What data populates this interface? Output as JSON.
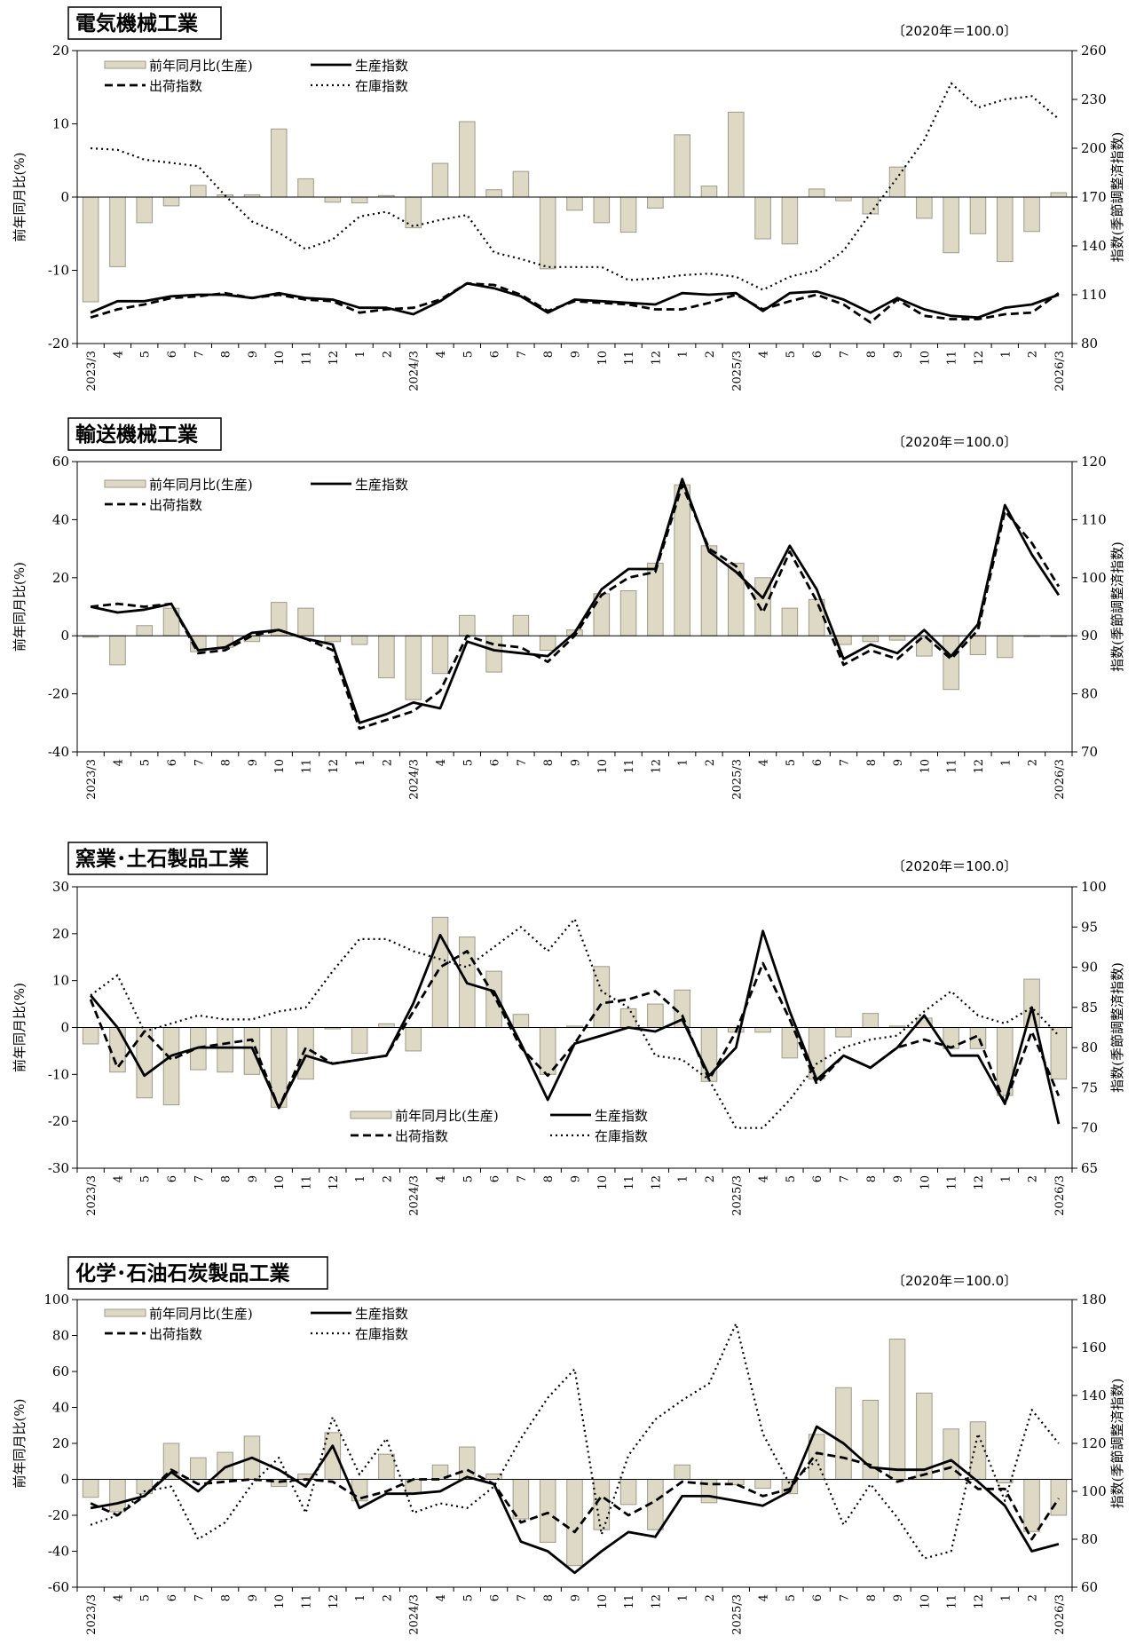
{
  "unit_note": "〔2020年＝100.0〕",
  "labels": {
    "bar": "前年同月比(生産)",
    "production": "生産指数",
    "shipment": "出荷指数",
    "inventory": "在庫指数",
    "left_axis": "前年同月比(%)",
    "right_axis": "指数(季節調整済指数)"
  },
  "x_labels": [
    "2023/3",
    "4",
    "5",
    "6",
    "7",
    "8",
    "9",
    "10",
    "11",
    "12",
    "1",
    "2",
    "2024/3",
    "4",
    "5",
    "6",
    "7",
    "8",
    "9",
    "10",
    "11",
    "12",
    "1",
    "2",
    "2025/3",
    "4",
    "5",
    "6",
    "7",
    "8",
    "9",
    "10",
    "11",
    "12",
    "1",
    "2",
    "2026/3"
  ],
  "colors": {
    "bar_fill": "#ddd9c4",
    "bar_stroke": "#9e9a88",
    "line": "#000000"
  },
  "chart_data": [
    {
      "type": "bar",
      "title": "電気機械工業",
      "ylim": [
        -20,
        20
      ],
      "yticks": [
        -20,
        -10,
        0,
        10,
        20
      ],
      "y2lim": [
        80,
        260
      ],
      "y2ticks": [
        80,
        110,
        140,
        170,
        200,
        230,
        260
      ],
      "legend": "top-left",
      "categories": [
        "2023/3",
        "4",
        "5",
        "6",
        "7",
        "8",
        "9",
        "10",
        "11",
        "12",
        "1",
        "2",
        "2024/3",
        "4",
        "5",
        "6",
        "7",
        "8",
        "9",
        "10",
        "11",
        "12",
        "1",
        "2",
        "2025/3",
        "4",
        "5",
        "6",
        "7",
        "8",
        "9",
        "10",
        "11",
        "12",
        "1",
        "2",
        "2026/3"
      ],
      "series": [
        {
          "name": "前年同月比(生産)",
          "kind": "bar",
          "axis": "left",
          "values": [
            -14.3,
            -9.5,
            -3.5,
            -1.2,
            1.6,
            0.3,
            0.3,
            9.3,
            2.5,
            -0.7,
            -0.8,
            0.2,
            -4.2,
            4.6,
            10.3,
            1.0,
            3.5,
            -9.8,
            -1.8,
            -3.5,
            -4.8,
            -1.5,
            8.5,
            1.5,
            11.6,
            -5.7,
            -6.4,
            1.1,
            -0.5,
            -2.3,
            4.1,
            -2.9,
            -7.6,
            -5.0,
            -8.8,
            -4.7,
            0.6
          ]
        },
        {
          "name": "生産指数",
          "kind": "line",
          "style": "solid",
          "axis": "right",
          "values": [
            99,
            106,
            106,
            109,
            110,
            110,
            108,
            111,
            108,
            107,
            102,
            102,
            98,
            106,
            117,
            114,
            109,
            99,
            107,
            106,
            105,
            104,
            111,
            110,
            111,
            100,
            111,
            112,
            107,
            99,
            108,
            101,
            97,
            96,
            102,
            104,
            110
          ]
        },
        {
          "name": "出荷指数",
          "kind": "line",
          "style": "dashed",
          "axis": "right",
          "values": [
            96,
            101,
            104,
            108,
            109,
            111,
            108,
            110,
            107,
            106,
            99,
            101,
            102,
            107,
            117,
            116,
            110,
            100,
            106,
            105,
            104,
            101,
            101,
            105,
            110,
            101,
            106,
            110,
            104,
            93,
            107,
            97,
            95,
            95,
            98,
            99,
            111
          ]
        },
        {
          "name": "在庫指数",
          "kind": "line",
          "style": "dotted",
          "axis": "right",
          "values": [
            200,
            199,
            193,
            191,
            189,
            171,
            155,
            148,
            138,
            144,
            158,
            161,
            152,
            156,
            159,
            136,
            132,
            127,
            127,
            127,
            119,
            120,
            122,
            123,
            121,
            113,
            121,
            125,
            137,
            160,
            182,
            205,
            240,
            225,
            230,
            232,
            218
          ]
        }
      ]
    },
    {
      "type": "bar",
      "title": "輸送機械工業",
      "ylim": [
        -40,
        60
      ],
      "yticks": [
        -40,
        -20,
        0,
        20,
        40,
        60
      ],
      "y2lim": [
        70,
        120
      ],
      "y2ticks": [
        70,
        80,
        90,
        100,
        110,
        120
      ],
      "legend": "top-left",
      "categories": [
        "2023/3",
        "4",
        "5",
        "6",
        "7",
        "8",
        "9",
        "10",
        "11",
        "12",
        "1",
        "2",
        "2024/3",
        "4",
        "5",
        "6",
        "7",
        "8",
        "9",
        "10",
        "11",
        "12",
        "1",
        "2",
        "2025/3",
        "4",
        "5",
        "6",
        "7",
        "8",
        "9",
        "10",
        "11",
        "12",
        "1",
        "2",
        "2026/3"
      ],
      "series": [
        {
          "name": "前年同月比(生産)",
          "kind": "bar",
          "axis": "left",
          "values": [
            -0.5,
            -10,
            3.5,
            9.5,
            -5.5,
            -4,
            -2,
            11.5,
            9.5,
            -2,
            -3,
            -14.5,
            -22,
            -13,
            7,
            -12.5,
            7,
            -5,
            2,
            14.5,
            15.5,
            25,
            52,
            31,
            25,
            20,
            9.5,
            12.5,
            -3,
            -2,
            -1.5,
            -7,
            -18.5,
            -6.5,
            -7.5,
            -0.3,
            -0.3
          ]
        },
        {
          "name": "生産指数",
          "kind": "line",
          "style": "solid",
          "axis": "right",
          "values": [
            95,
            94,
            94.5,
            95.5,
            87.5,
            88,
            90.5,
            91,
            89.5,
            88.5,
            75,
            76.5,
            78.5,
            77.5,
            89,
            87.5,
            87,
            86.5,
            90.5,
            98,
            101.5,
            101.5,
            117,
            104.5,
            101,
            96.5,
            105.5,
            98,
            86,
            88.5,
            87,
            91,
            86.5,
            92,
            112.5,
            104,
            97
          ]
        },
        {
          "name": "出荷指数",
          "kind": "line",
          "style": "dashed",
          "axis": "right",
          "values": [
            95,
            95.5,
            95,
            95.5,
            87,
            87.5,
            90,
            91,
            89.5,
            87.5,
            74,
            75.5,
            77,
            80.5,
            90,
            88.5,
            88,
            85.5,
            90,
            97,
            100,
            101,
            116,
            105,
            102,
            94,
            104.5,
            96,
            85,
            87.5,
            86,
            90,
            86,
            91,
            111.5,
            106,
            98.5
          ]
        }
      ]
    },
    {
      "type": "bar",
      "title": "窯業･土石製品工業",
      "ylim": [
        -30,
        30
      ],
      "yticks": [
        -30,
        -20,
        -10,
        0,
        10,
        20,
        30
      ],
      "y2lim": [
        65,
        100
      ],
      "y2ticks": [
        65,
        70,
        75,
        80,
        85,
        90,
        95,
        100
      ],
      "legend": "bottom-center",
      "categories": [
        "2023/3",
        "4",
        "5",
        "6",
        "7",
        "8",
        "9",
        "10",
        "11",
        "12",
        "1",
        "2",
        "2024/3",
        "4",
        "5",
        "6",
        "7",
        "8",
        "9",
        "10",
        "11",
        "12",
        "1",
        "2",
        "2025/3",
        "4",
        "5",
        "6",
        "7",
        "8",
        "9",
        "10",
        "11",
        "12",
        "1",
        "2",
        "2026/3"
      ],
      "series": [
        {
          "name": "前年同月比(生産)",
          "kind": "bar",
          "axis": "left",
          "values": [
            -3.5,
            -9.5,
            -15,
            -16.5,
            -9,
            -9.5,
            -10,
            -17,
            -11,
            -0.3,
            -5.5,
            0.8,
            -5,
            23.5,
            19.3,
            12,
            2.8,
            -10,
            0.3,
            13,
            4,
            5,
            8,
            -11.5,
            -1,
            -1,
            -6.5,
            -11,
            -2,
            3,
            0.3,
            2,
            -4.5,
            -4.5,
            -14.5,
            10.3,
            -11
          ]
        },
        {
          "name": "生産指数",
          "kind": "line",
          "style": "solid",
          "axis": "right",
          "values": [
            86.5,
            82.5,
            76.5,
            79,
            80,
            80,
            80,
            72.5,
            79,
            78,
            78.5,
            79,
            85.5,
            94,
            88,
            87,
            80.5,
            73.5,
            80.5,
            81.5,
            82.5,
            82,
            83.5,
            76.5,
            80,
            94.5,
            84.5,
            76,
            79,
            77.5,
            80,
            84,
            79,
            79,
            73,
            85,
            70.5
          ]
        },
        {
          "name": "出荷指数",
          "kind": "line",
          "style": "dashed",
          "axis": "right",
          "values": [
            86,
            77.5,
            82,
            78.5,
            80,
            80.5,
            81,
            72.5,
            80,
            78,
            78.5,
            79,
            84.5,
            90,
            92,
            86.5,
            80,
            76.5,
            80.5,
            85.5,
            86,
            87,
            84,
            76,
            82,
            90.5,
            83.5,
            75.5,
            79,
            77.5,
            80,
            81,
            80,
            81.5,
            73,
            82,
            74
          ]
        },
        {
          "name": "在庫指数",
          "kind": "line",
          "style": "dotted",
          "axis": "right",
          "values": [
            86.5,
            89,
            82,
            83,
            84,
            83.5,
            83.5,
            84.5,
            85,
            89.5,
            93.5,
            93.5,
            92,
            91,
            90,
            92.5,
            95,
            92,
            96,
            87,
            85,
            79,
            78.5,
            76,
            70,
            70,
            73.5,
            78,
            80,
            81,
            81.5,
            84.5,
            87,
            84,
            83,
            85,
            81.5
          ]
        }
      ]
    },
    {
      "type": "bar",
      "title": "化学･石油石炭製品工業",
      "ylim": [
        -60,
        100
      ],
      "yticks": [
        -60,
        -40,
        -20,
        0,
        20,
        40,
        60,
        80,
        100
      ],
      "y2lim": [
        60,
        180
      ],
      "y2ticks": [
        60,
        80,
        100,
        120,
        140,
        160,
        180
      ],
      "legend": "top-left",
      "categories": [
        "2023/3",
        "4",
        "5",
        "6",
        "7",
        "8",
        "9",
        "10",
        "11",
        "12",
        "1",
        "2",
        "2024/3",
        "4",
        "5",
        "6",
        "7",
        "8",
        "9",
        "10",
        "11",
        "12",
        "1",
        "2",
        "2025/3",
        "4",
        "5",
        "6",
        "7",
        "8",
        "9",
        "10",
        "11",
        "12",
        "1",
        "2",
        "2026/3"
      ],
      "series": [
        {
          "name": "前年同月比(生産)",
          "kind": "bar",
          "axis": "left",
          "values": [
            -10,
            -18,
            -8,
            20,
            12,
            15,
            24,
            -4,
            3,
            26,
            -12,
            14,
            -8,
            8,
            18,
            3,
            -22,
            -35,
            -48,
            -28,
            -14,
            -28,
            8,
            -13,
            -3,
            -5,
            -8,
            25,
            51,
            44,
            78,
            48,
            28,
            32,
            -2,
            -29,
            -20
          ]
        },
        {
          "name": "生産指数",
          "kind": "line",
          "style": "solid",
          "axis": "right",
          "values": [
            93,
            95,
            98,
            108,
            100,
            110,
            114,
            109,
            102,
            119,
            93,
            99,
            99,
            100,
            106,
            103,
            79,
            75,
            66,
            75,
            83,
            81,
            98,
            98,
            96,
            94,
            100,
            127,
            120,
            110,
            109,
            109,
            113,
            104,
            94,
            75,
            78
          ]
        },
        {
          "name": "出荷指数",
          "kind": "line",
          "style": "dashed",
          "axis": "right",
          "values": [
            95,
            90,
            98,
            109,
            103,
            104,
            105,
            104,
            105,
            104,
            97,
            100,
            105,
            105,
            109,
            103,
            87,
            91,
            83,
            98,
            90,
            96,
            104,
            103,
            103,
            98,
            101,
            116,
            114,
            111,
            104,
            107,
            110,
            101,
            101,
            80,
            97
          ]
        },
        {
          "name": "在庫指数",
          "kind": "line",
          "style": "dotted",
          "axis": "right",
          "values": [
            86,
            90,
            100,
            102,
            80,
            87,
            103,
            114,
            91,
            131,
            107,
            122,
            91,
            95,
            93,
            102,
            122,
            139,
            151,
            82,
            115,
            130,
            138,
            145,
            170,
            124,
            103,
            113,
            86,
            103,
            89,
            72,
            75,
            124,
            96,
            134,
            120
          ]
        }
      ]
    }
  ]
}
